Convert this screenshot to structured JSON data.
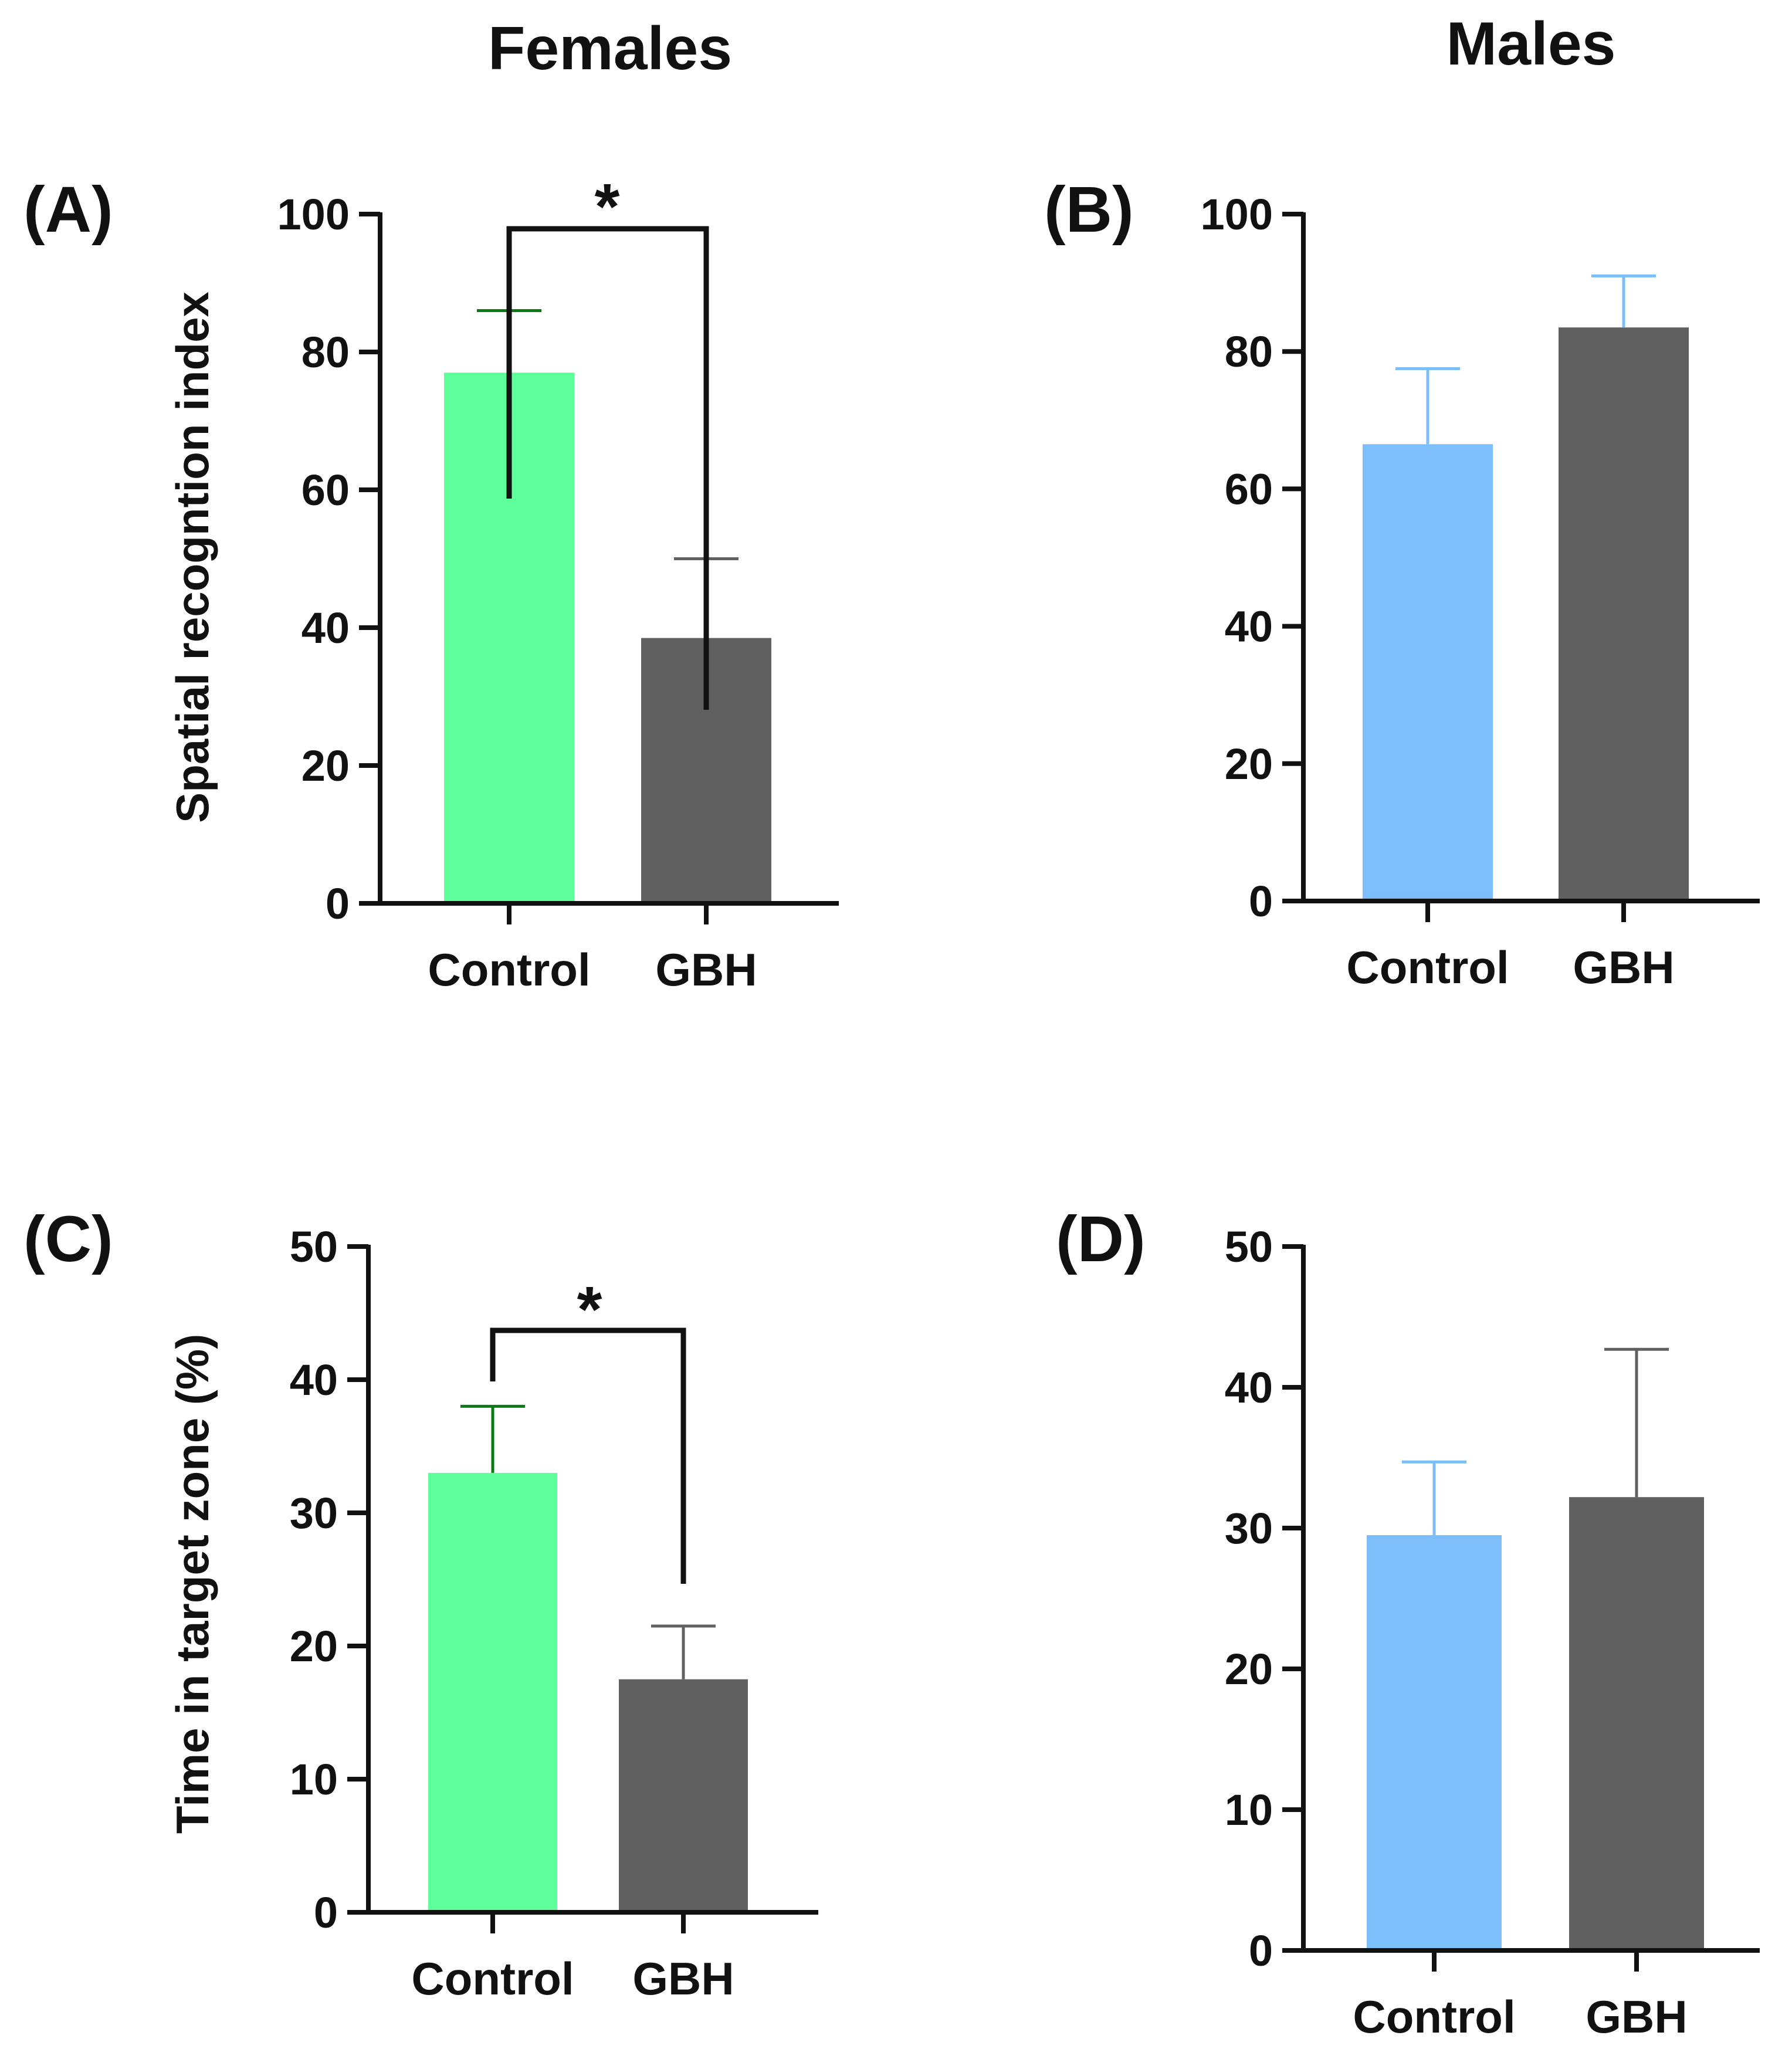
{
  "column_titles": {
    "left": "Females",
    "right": "Males"
  },
  "colors": {
    "female_control": "#5cff9a",
    "female_control_error": "#0a7a12",
    "male_control": "#7cbef9",
    "gbh": "#606060",
    "axis": "#111111"
  },
  "chart_data": [
    {
      "panel": "(A)",
      "type": "bar",
      "categories": [
        "Control",
        "GBH"
      ],
      "values": [
        77,
        38.5
      ],
      "errors": [
        9,
        11.5
      ],
      "ylabel": "Spatial recogntion index",
      "ylim": [
        0,
        100
      ],
      "yticks": [
        0,
        20,
        40,
        60,
        80,
        100
      ],
      "significance": "*"
    },
    {
      "panel": "(B)",
      "type": "bar",
      "categories": [
        "Control",
        "GBH"
      ],
      "values": [
        66.5,
        83.5
      ],
      "errors": [
        11,
        7.5
      ],
      "ylabel": "",
      "ylim": [
        0,
        100
      ],
      "yticks": [
        0,
        20,
        40,
        60,
        80,
        100
      ],
      "significance": ""
    },
    {
      "panel": "(C)",
      "type": "bar",
      "categories": [
        "Control",
        "GBH"
      ],
      "values": [
        33,
        17.5
      ],
      "errors": [
        5,
        4
      ],
      "ylabel": "Time in target zone (%)",
      "ylim": [
        0,
        50
      ],
      "yticks": [
        0,
        10,
        20,
        30,
        40,
        50
      ],
      "significance": "*"
    },
    {
      "panel": "(D)",
      "type": "bar",
      "categories": [
        "Control",
        "GBH"
      ],
      "values": [
        29.5,
        32.2
      ],
      "errors": [
        5.2,
        10.5
      ],
      "ylabel": "",
      "ylim": [
        0,
        50
      ],
      "yticks": [
        0,
        10,
        20,
        30,
        40,
        50
      ],
      "significance": ""
    }
  ]
}
